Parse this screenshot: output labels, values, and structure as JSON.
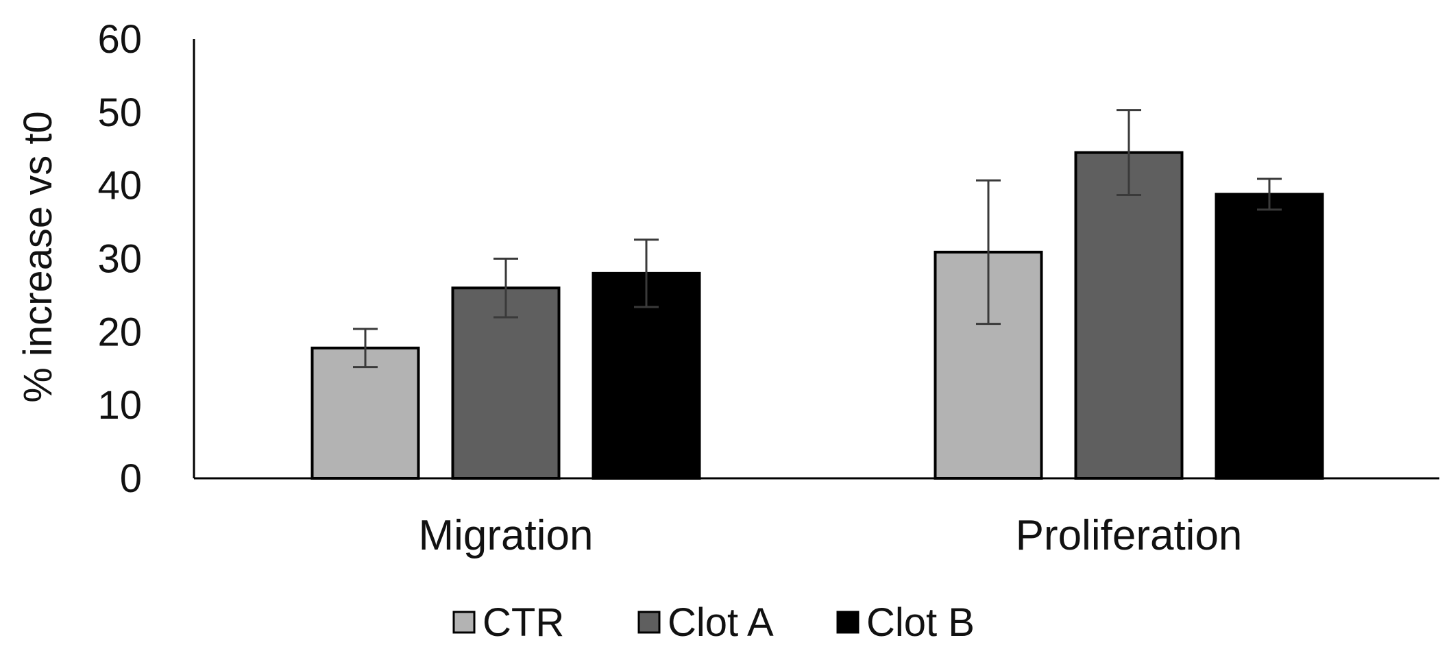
{
  "chart_data": {
    "type": "bar",
    "title": "",
    "xlabel": "",
    "ylabel": "% increase vs t0",
    "ylim": [
      0,
      60
    ],
    "yticks": [
      0,
      10,
      20,
      30,
      40,
      50,
      60
    ],
    "grid": false,
    "legend_position": "bottom",
    "categories": [
      "Migration",
      "Proliferation"
    ],
    "series": [
      {
        "name": "CTR",
        "color": "#b3b3b3",
        "values": [
          17.8,
          30.9
        ],
        "errors": [
          2.6,
          9.8
        ]
      },
      {
        "name": "Clot A",
        "color": "#5f5f5f",
        "values": [
          26.0,
          44.5
        ],
        "errors": [
          4.0,
          5.8
        ]
      },
      {
        "name": "Clot B",
        "color": "#000000",
        "values": [
          28.0,
          38.8
        ],
        "errors": [
          4.6,
          2.1
        ]
      }
    ]
  }
}
